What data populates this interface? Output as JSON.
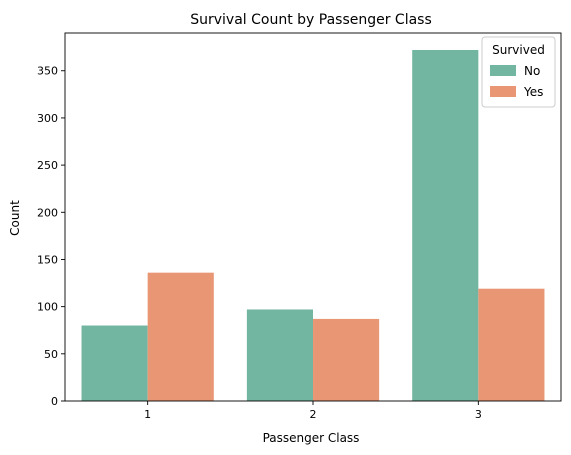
{
  "chart_data": {
    "type": "bar",
    "title": "Survival Count by Passenger Class",
    "xlabel": "Passenger Class",
    "ylabel": "Count",
    "categories": [
      "1",
      "2",
      "3"
    ],
    "series": [
      {
        "name": "No",
        "values": [
          80,
          97,
          372
        ],
        "color": "#72b6a1"
      },
      {
        "name": "Yes",
        "values": [
          136,
          87,
          119
        ],
        "color": "#e99675"
      }
    ],
    "ylim": [
      0,
      390
    ],
    "yticks": [
      0,
      50,
      100,
      150,
      200,
      250,
      300,
      350
    ],
    "grid": false,
    "legend": {
      "title": "Survived",
      "placement": "top-right"
    }
  }
}
